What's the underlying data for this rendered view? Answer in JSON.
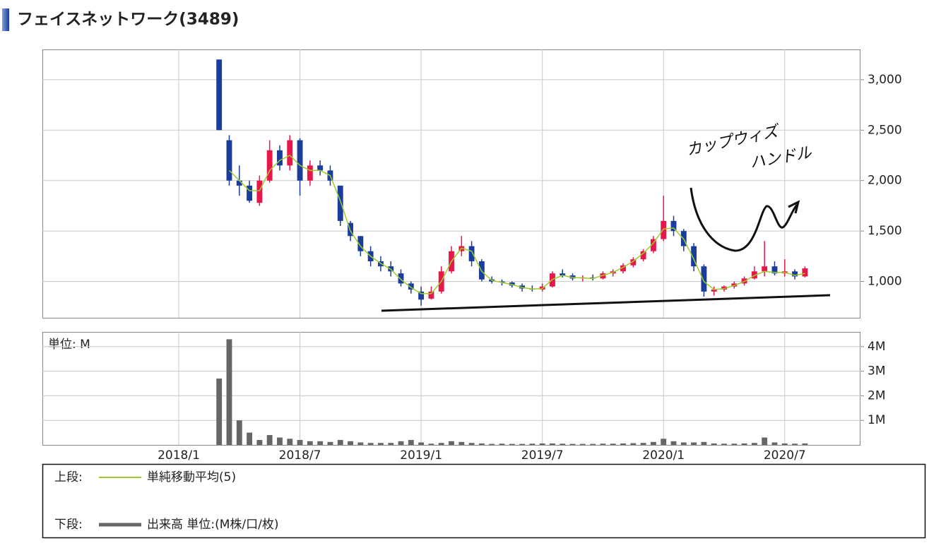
{
  "chart_data": {
    "type": "candlestick",
    "title": "フェイスネットワーク(3489)",
    "up_color": "#e8174a",
    "down_color": "#1a3c9c",
    "categories": [
      null,
      null,
      null,
      null,
      null,
      null,
      null,
      null,
      null,
      null,
      null,
      null,
      null,
      "2018/1",
      null,
      null,
      null,
      null,
      null,
      null,
      null,
      null,
      null,
      null,
      null,
      "2018/7",
      null,
      null,
      null,
      null,
      null,
      null,
      null,
      null,
      null,
      null,
      null,
      "2019/1",
      null,
      null,
      null,
      null,
      null,
      null,
      null,
      null,
      null,
      null,
      null,
      "2019/7",
      null,
      null,
      null,
      null,
      null,
      null,
      null,
      null,
      null,
      null,
      null,
      "2020/1",
      null,
      null,
      null,
      null,
      null,
      null,
      null,
      null,
      null,
      null,
      null,
      "2020/7",
      null,
      null,
      null,
      null,
      null,
      null,
      null
    ],
    "open": [
      null,
      null,
      null,
      null,
      null,
      null,
      null,
      null,
      null,
      null,
      null,
      null,
      null,
      null,
      null,
      null,
      null,
      3200,
      2400,
      2000,
      1950,
      1780,
      2000,
      2300,
      2150,
      2400,
      2000,
      2150,
      2100,
      1950,
      1580,
      1450,
      1300,
      1200,
      1150,
      1080,
      980,
      900,
      830,
      900,
      1100,
      1300,
      1350,
      1200,
      1020,
      1000,
      990,
      960,
      930,
      920,
      950,
      1080,
      1060,
      1030,
      1040,
      1030,
      1080,
      1100,
      1160,
      1220,
      1300,
      1420,
      1600,
      1500,
      1350,
      1150,
      900,
      920,
      950,
      980,
      1030,
      1100,
      1150,
      1080,
      1100,
      1050,
      null,
      null,
      null,
      null,
      null
    ],
    "high": [
      null,
      null,
      null,
      null,
      null,
      null,
      null,
      null,
      null,
      null,
      null,
      null,
      null,
      null,
      null,
      null,
      null,
      3200,
      2450,
      2150,
      2000,
      2050,
      2400,
      2350,
      2450,
      2420,
      2200,
      2200,
      2150,
      1950,
      1600,
      1450,
      1350,
      1250,
      1200,
      1120,
      1000,
      950,
      950,
      1150,
      1350,
      1450,
      1400,
      1220,
      1050,
      1020,
      1000,
      980,
      960,
      980,
      1100,
      1120,
      1080,
      1060,
      1070,
      1100,
      1120,
      1180,
      1240,
      1320,
      1450,
      1850,
      1650,
      1520,
      1380,
      1170,
      950,
      960,
      1000,
      1050,
      1150,
      1400,
      1200,
      1220,
      1120,
      1150,
      null,
      null,
      null,
      null,
      null
    ],
    "low": [
      null,
      null,
      null,
      null,
      null,
      null,
      null,
      null,
      null,
      null,
      null,
      null,
      null,
      null,
      null,
      null,
      null,
      2500,
      1950,
      1850,
      1780,
      1750,
      1980,
      2100,
      2100,
      1850,
      1950,
      2050,
      1950,
      1550,
      1400,
      1250,
      1150,
      1100,
      1050,
      950,
      880,
      760,
      820,
      880,
      1080,
      1250,
      1150,
      1000,
      980,
      960,
      940,
      900,
      900,
      900,
      940,
      1040,
      1010,
      1000,
      1010,
      1020,
      1050,
      1080,
      1140,
      1200,
      1280,
      1400,
      1450,
      1300,
      1100,
      850,
      860,
      900,
      930,
      960,
      1020,
      1050,
      1060,
      1050,
      1020,
      1040,
      null,
      null,
      null,
      null,
      null
    ],
    "close": [
      null,
      null,
      null,
      null,
      null,
      null,
      null,
      null,
      null,
      null,
      null,
      null,
      null,
      null,
      null,
      null,
      null,
      2500,
      2000,
      1950,
      1800,
      2000,
      2300,
      2150,
      2400,
      2000,
      2150,
      2100,
      2000,
      1600,
      1450,
      1300,
      1200,
      1150,
      1100,
      980,
      920,
      820,
      900,
      1100,
      1300,
      1350,
      1200,
      1020,
      1000,
      990,
      960,
      930,
      920,
      950,
      1080,
      1060,
      1030,
      1040,
      1030,
      1080,
      1100,
      1160,
      1220,
      1300,
      1420,
      1600,
      1500,
      1350,
      1150,
      900,
      920,
      950,
      980,
      1030,
      1100,
      1150,
      1080,
      1100,
      1050,
      1130,
      null,
      null,
      null,
      null,
      null
    ],
    "ylim": [
      640,
      3300
    ],
    "yticks": [
      {
        "value": 1000,
        "label": "1,000"
      },
      {
        "value": 1500,
        "label": "1,500"
      },
      {
        "value": 2000,
        "label": "2,000"
      },
      {
        "value": 2500,
        "label": "2,500"
      },
      {
        "value": 3000,
        "label": "3,000"
      }
    ],
    "grid": true,
    "ma": {
      "name": "単純移動平均(5)",
      "color": "#9ccc2c",
      "values": [
        null,
        null,
        null,
        null,
        null,
        null,
        null,
        null,
        null,
        null,
        null,
        null,
        null,
        null,
        null,
        null,
        null,
        null,
        2100,
        2000,
        1900,
        1900,
        2100,
        2200,
        2250,
        2150,
        2100,
        2100,
        2050,
        1800,
        1500,
        1350,
        1250,
        1180,
        1120,
        1020,
        940,
        880,
        880,
        1000,
        1200,
        1330,
        1300,
        1100,
        1010,
        990,
        970,
        940,
        925,
        930,
        1020,
        1060,
        1040,
        1035,
        1030,
        1060,
        1090,
        1140,
        1200,
        1280,
        1380,
        1520,
        1530,
        1420,
        1220,
        1000,
        920,
        930,
        960,
        1000,
        1060,
        1100,
        1090,
        1090,
        1060,
        1080,
        null,
        null,
        null,
        null,
        null
      ]
    },
    "volume": {
      "name": "出来高 単位:(M株/口/枚)",
      "color": "#666666",
      "unit_label": "単位: M",
      "values": [
        null,
        null,
        null,
        null,
        null,
        null,
        null,
        null,
        null,
        null,
        null,
        null,
        null,
        null,
        null,
        null,
        null,
        2.7,
        4.3,
        1.0,
        0.5,
        0.2,
        0.4,
        0.3,
        0.25,
        0.2,
        0.15,
        0.15,
        0.12,
        0.2,
        0.15,
        0.1,
        0.08,
        0.08,
        0.08,
        0.15,
        0.2,
        0.1,
        0.05,
        0.08,
        0.15,
        0.12,
        0.08,
        0.06,
        0.04,
        0.05,
        0.04,
        0.04,
        0.05,
        0.06,
        0.06,
        0.05,
        0.04,
        0.04,
        0.04,
        0.05,
        0.05,
        0.06,
        0.07,
        0.08,
        0.12,
        0.25,
        0.15,
        0.1,
        0.1,
        0.12,
        0.06,
        0.05,
        0.05,
        0.06,
        0.08,
        0.3,
        0.1,
        0.06,
        0.05,
        0.06,
        null,
        null,
        null,
        null,
        null
      ],
      "ylim": [
        0,
        4.6
      ],
      "yticks": [
        {
          "value": 1,
          "label": "1M"
        },
        {
          "value": 2,
          "label": "2M"
        },
        {
          "value": 3,
          "label": "3M"
        },
        {
          "value": 4,
          "label": "4M"
        }
      ]
    },
    "legend": {
      "upper_label": "上段:",
      "lower_label": "下段:"
    },
    "annotations": [
      "カップウィズ",
      "ハンドル"
    ]
  }
}
